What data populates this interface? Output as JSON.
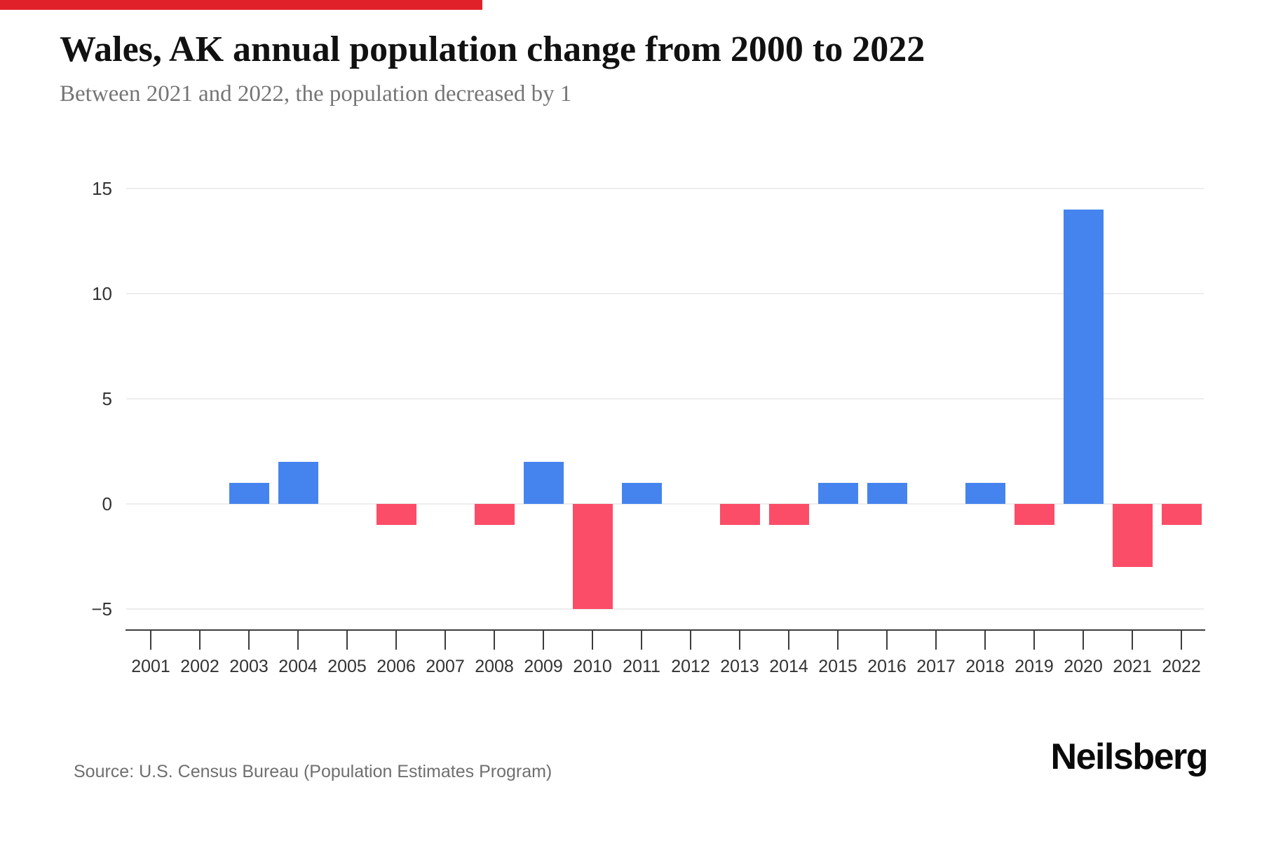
{
  "page": {
    "title": "Wales, AK annual population change from 2000 to 2022",
    "subtitle": "Between 2021 and 2022, the population decreased by 1",
    "source": "Source: U.S. Census Bureau (Population Estimates Program)",
    "brand": "Neilsberg"
  },
  "colors": {
    "positive_bar": "#4584ee",
    "negative_bar": "#fb4d68",
    "gridline": "#ededed",
    "axis": "#3c3c3c",
    "title_text": "#111111",
    "subtitle_text": "#757575",
    "tick_text": "#333333",
    "source_text": "#6f6f6f",
    "brand_text": "#0a0a0a",
    "top_stripe": "#e0212a"
  },
  "chart_data": {
    "type": "bar",
    "title": "Wales, AK annual population change from 2000 to 2022",
    "subtitle": "Between 2021 and 2022, the population decreased by 1",
    "categories": [
      "2001",
      "2002",
      "2003",
      "2004",
      "2005",
      "2006",
      "2007",
      "2008",
      "2009",
      "2010",
      "2011",
      "2012",
      "2013",
      "2014",
      "2015",
      "2016",
      "2017",
      "2018",
      "2019",
      "2020",
      "2021",
      "2022"
    ],
    "values": [
      0,
      0,
      1,
      2,
      0,
      -1,
      0,
      -1,
      2,
      -5,
      1,
      0,
      -1,
      -1,
      1,
      1,
      0,
      1,
      -1,
      14,
      -3,
      -1
    ],
    "xlabel": "",
    "ylabel": "",
    "ylim": [
      -5,
      15
    ],
    "yticks": [
      15,
      10,
      5,
      0,
      -5
    ],
    "grid": "horizontal",
    "legend": false,
    "positive_color": "#4584ee",
    "negative_color": "#fb4d68"
  }
}
